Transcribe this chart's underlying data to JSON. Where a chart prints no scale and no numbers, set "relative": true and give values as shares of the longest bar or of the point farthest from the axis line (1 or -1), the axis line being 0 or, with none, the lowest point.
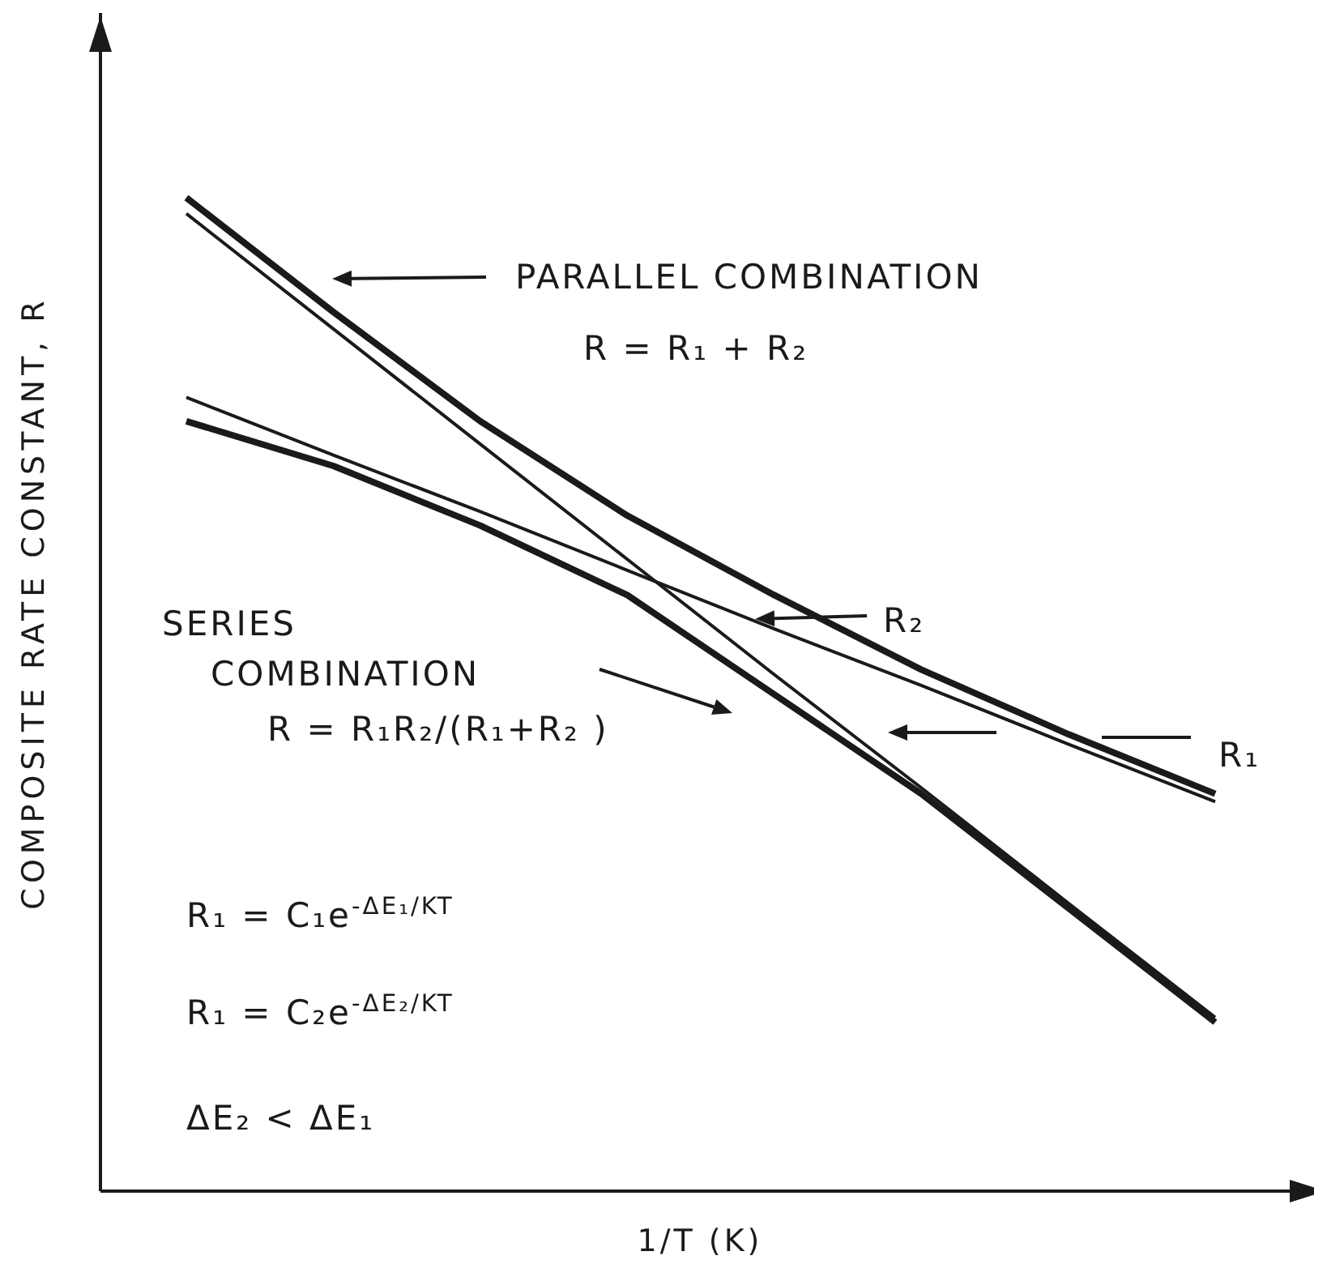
{
  "chart_data": {
    "type": "line",
    "relative": true,
    "xlabel": "1/T (K)",
    "ylabel": "COMPOSITE RATE CONSTANT, R",
    "categories": [
      null,
      null,
      null,
      null,
      null,
      null,
      null,
      null
    ],
    "series": [
      {
        "name": "PARALLEL COMBINATION",
        "color": "#1a1a1a",
        "values": [
          1.0,
          0.885,
          0.775,
          0.68,
          0.6,
          0.525,
          0.46,
          0.4
        ]
      },
      {
        "name": "SERIES COMBINATION",
        "color": "#1a1a1a",
        "values": [
          0.775,
          0.73,
          0.67,
          0.6,
          0.5,
          0.4,
          0.285,
          0.17
        ]
      },
      {
        "name": "R₂",
        "color": "#1a1a1a",
        "values": [
          0.799,
          0.741,
          0.684,
          0.625,
          0.566,
          0.509,
          0.45,
          0.392
        ]
      },
      {
        "name": "R₁",
        "color": "#1a1a1a",
        "values": [
          0.984,
          0.868,
          0.752,
          0.636,
          0.52,
          0.406,
          0.29,
          0.175
        ]
      }
    ],
    "annotations": [
      "R = R₁ + R₂",
      "R =  R₁R₂/(R₁+R₂ )",
      "R₁ = C₁e$^{-ΔE₁/KT}$",
      "R₁ = C₂e$^{-ΔE₂/KT}$",
      "ΔE₂ < ΔE₁"
    ],
    "legend": "top right",
    "grid": false,
    "marker": "none",
    "line_style": "solid"
  }
}
